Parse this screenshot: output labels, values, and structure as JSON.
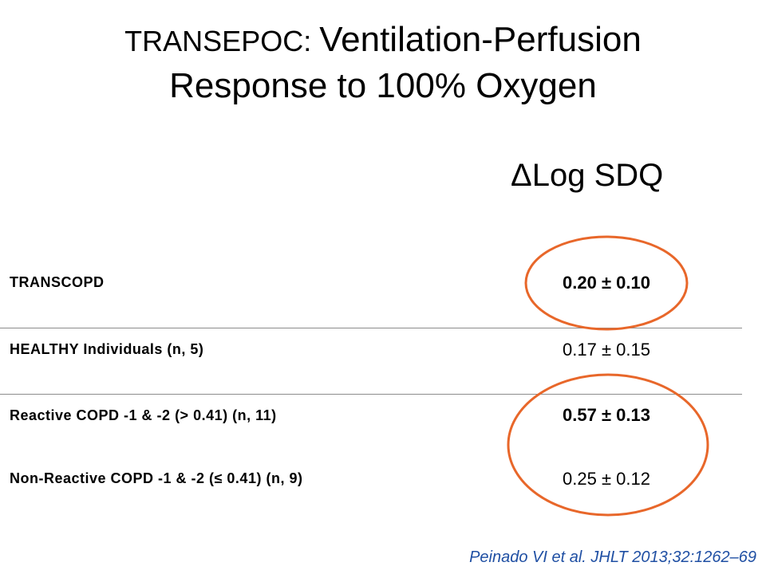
{
  "title": {
    "prefix": "TRANSEPOC: ",
    "line1": "Ventilation-Perfusion",
    "line2": "Response to 100% Oxygen"
  },
  "column_header": "ΔLog SDQ",
  "rows": [
    {
      "label": "TRANSCOPD",
      "value": "0.20 ± 0.10",
      "bold_value": true
    },
    {
      "label": "HEALTHY Individuals (n, 5)",
      "value": "0.17 ± 0.15",
      "bold_value": false
    },
    {
      "label": "Reactive COPD -1 & -2 (> 0.41) (n, 11)",
      "value": "0.57 ± 0.13",
      "bold_value": true
    },
    {
      "label": "Non-Reactive COPD -1 & -2 (≤ 0.41) (n, 9)",
      "value": "0.25 ± 0.12",
      "bold_value": false
    }
  ],
  "highlight_color": "#e8672a",
  "citation": "Peinado VI et al. JHLT 2013;32:1262–69",
  "citation_color": "#1f4fa3"
}
